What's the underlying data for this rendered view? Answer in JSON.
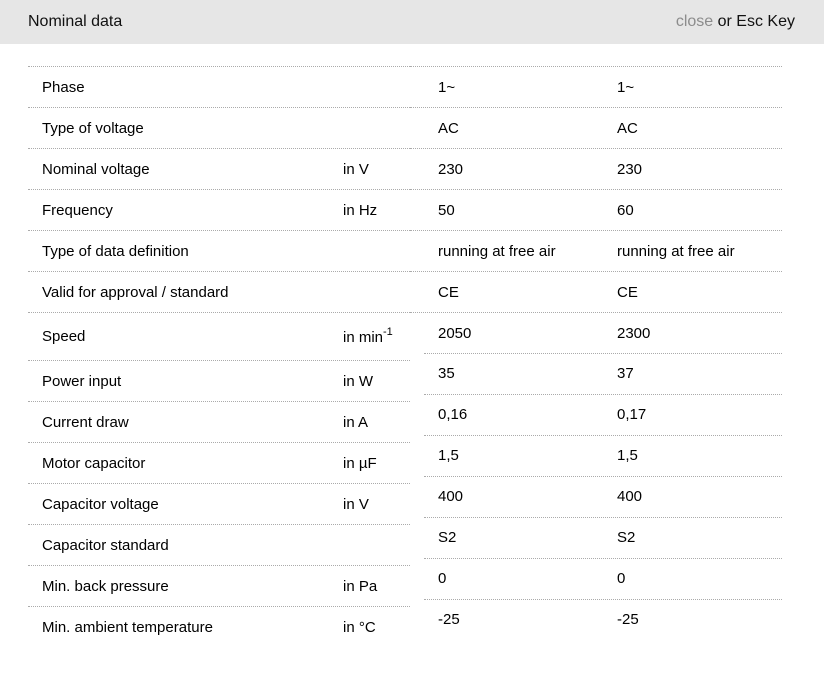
{
  "header": {
    "title": "Nominal data",
    "close_label": "close",
    "close_suffix": " or Esc Key"
  },
  "table": {
    "rows": [
      {
        "label": "Phase",
        "unit": "",
        "unit_sup": "",
        "v1": "1~",
        "v2": "1~"
      },
      {
        "label": "Type of voltage",
        "unit": "",
        "unit_sup": "",
        "v1": "AC",
        "v2": "AC"
      },
      {
        "label": "Nominal voltage",
        "unit": "in V",
        "unit_sup": "",
        "v1": "230",
        "v2": "230"
      },
      {
        "label": "Frequency",
        "unit": "in Hz",
        "unit_sup": "",
        "v1": "50",
        "v2": "60"
      },
      {
        "label": "Type of data definition",
        "unit": "",
        "unit_sup": "",
        "v1": "running at free air",
        "v2": "running at free air"
      },
      {
        "label": "Valid for approval / standard",
        "unit": "",
        "unit_sup": "",
        "v1": "CE",
        "v2": "CE"
      },
      {
        "label": "Speed",
        "unit": "in min",
        "unit_sup": "-1",
        "v1": "2050",
        "v2": "2300",
        "tall": true
      },
      {
        "label": "Power input",
        "unit": "in W",
        "unit_sup": "",
        "v1": "35",
        "v2": "37"
      },
      {
        "label": "Current draw",
        "unit": "in A",
        "unit_sup": "",
        "v1": "0,16",
        "v2": "0,17"
      },
      {
        "label": "Motor capacitor",
        "unit": "in µF",
        "unit_sup": "",
        "v1": "1,5",
        "v2": "1,5"
      },
      {
        "label": "Capacitor voltage",
        "unit": "in V",
        "unit_sup": "",
        "v1": "400",
        "v2": "400"
      },
      {
        "label": "Capacitor standard",
        "unit": "",
        "unit_sup": "",
        "v1": "S2",
        "v2": "S2"
      },
      {
        "label": "Min. back pressure",
        "unit": "in Pa",
        "unit_sup": "",
        "v1": "0",
        "v2": "0"
      },
      {
        "label": "Min. ambient temperature",
        "unit": "in °C",
        "unit_sup": "",
        "v1": "-25",
        "v2": "-25"
      }
    ]
  },
  "colors": {
    "header_bg": "#e6e6e6",
    "close_link": "#8c8c8c",
    "text": "#000000",
    "divider": "#ababab"
  }
}
